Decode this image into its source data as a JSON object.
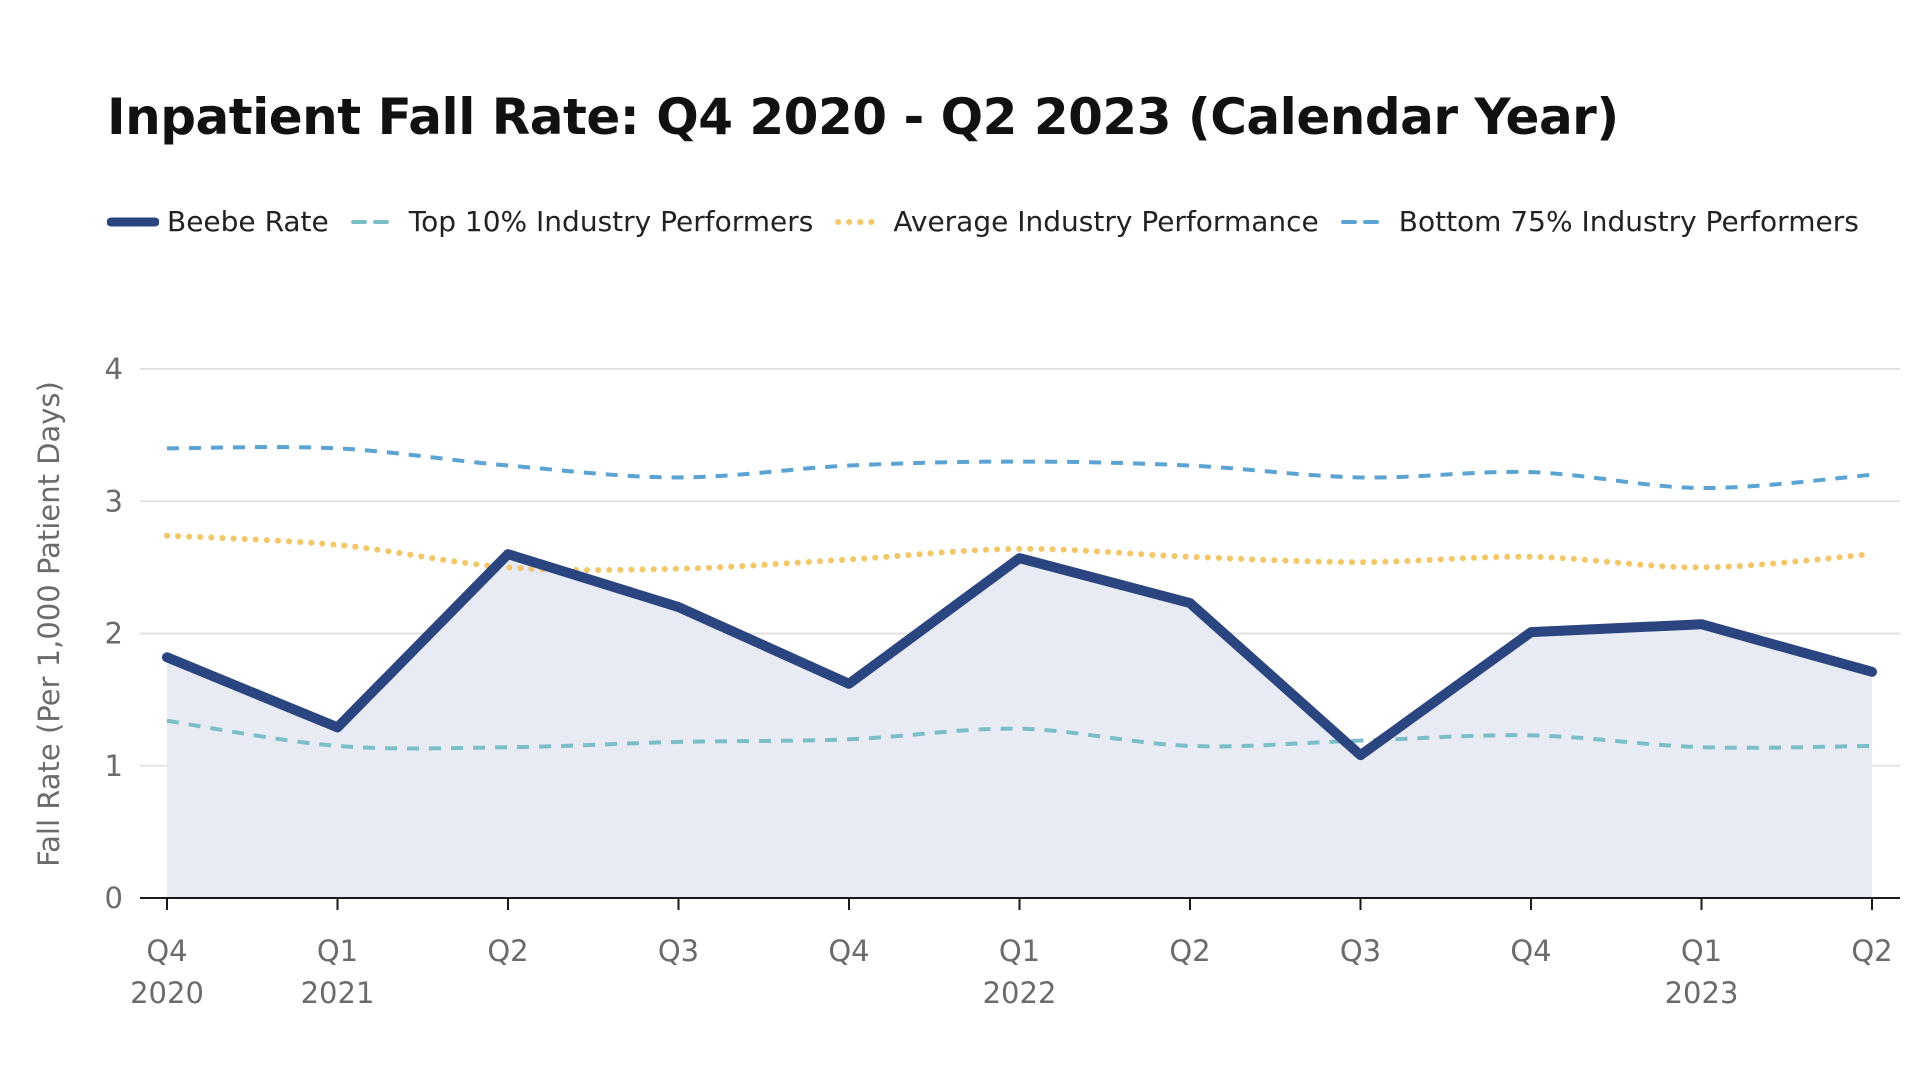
{
  "chart_data": {
    "type": "line",
    "title": "Inpatient Fall Rate: Q4 2020 - Q2 2023 (Calendar Year)",
    "ylabel": "Fall Rate (Per 1,000 Patient Days)",
    "xlabel": "",
    "ylim": [
      0,
      4
    ],
    "yticks": [
      0,
      1,
      2,
      3,
      4
    ],
    "grid": true,
    "legend_position": "top-left",
    "categories": [
      {
        "quarter": "Q4",
        "year": "2020"
      },
      {
        "quarter": "Q1",
        "year": "2021"
      },
      {
        "quarter": "Q2",
        "year": ""
      },
      {
        "quarter": "Q3",
        "year": ""
      },
      {
        "quarter": "Q4",
        "year": ""
      },
      {
        "quarter": "Q1",
        "year": "2022"
      },
      {
        "quarter": "Q2",
        "year": ""
      },
      {
        "quarter": "Q3",
        "year": ""
      },
      {
        "quarter": "Q4",
        "year": ""
      },
      {
        "quarter": "Q1",
        "year": "2023"
      },
      {
        "quarter": "Q2",
        "year": ""
      }
    ],
    "series": [
      {
        "name": "Beebe Rate",
        "style": "solid-area",
        "color": "#2b4580",
        "area_color": "#e8ebf4",
        "values": [
          1.82,
          1.29,
          2.6,
          2.2,
          1.62,
          2.57,
          2.23,
          1.08,
          2.01,
          2.07,
          1.71
        ]
      },
      {
        "name": "Top 10% Industry Performers",
        "style": "dashed",
        "color": "#7bbec8",
        "values": [
          1.34,
          1.15,
          1.14,
          1.18,
          1.2,
          1.28,
          1.15,
          1.19,
          1.23,
          1.14,
          1.15
        ]
      },
      {
        "name": "Average Industry Performance",
        "style": "dotted",
        "color": "#f2c76a",
        "values": [
          2.74,
          2.67,
          2.5,
          2.49,
          2.56,
          2.64,
          2.58,
          2.54,
          2.58,
          2.5,
          2.6
        ]
      },
      {
        "name": "Bottom 75% Industry Performers",
        "style": "dashed",
        "color": "#5ba3d3",
        "values": [
          3.4,
          3.4,
          3.27,
          3.18,
          3.27,
          3.3,
          3.27,
          3.18,
          3.22,
          3.1,
          3.2
        ]
      }
    ]
  }
}
